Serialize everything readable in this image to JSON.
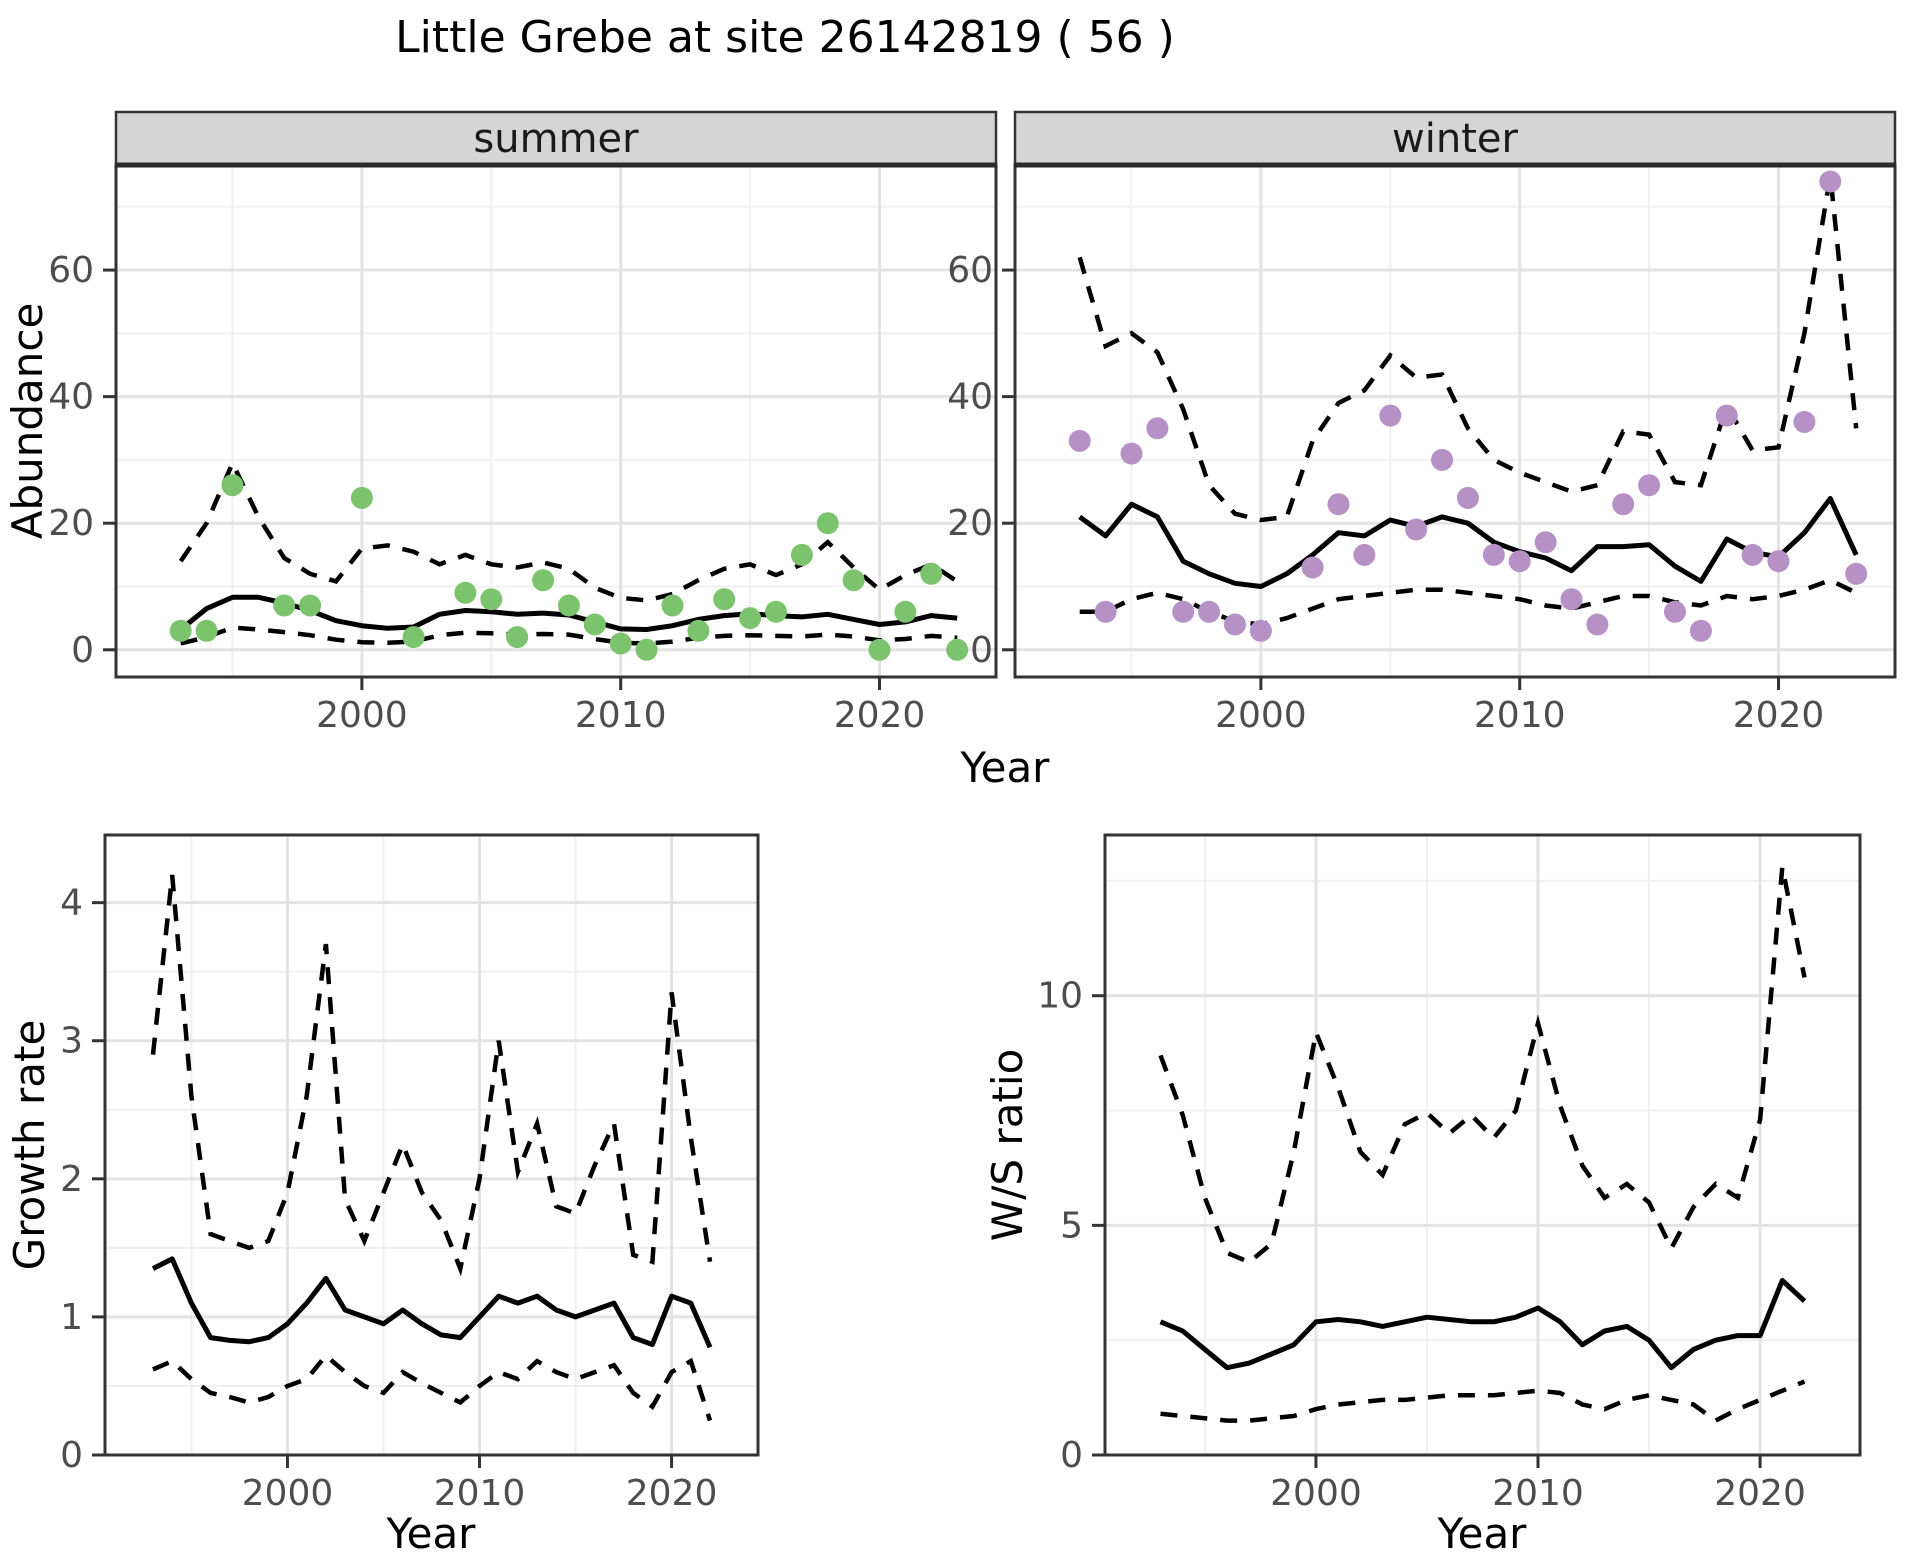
{
  "title": "Little Grebe at site 26142819 ( 56 )",
  "axis": {
    "year_label": "Year",
    "abundance_label": "Abundance",
    "growth_label": "Growth rate",
    "ws_label": "W/S ratio"
  },
  "colors": {
    "summer_point": "#7BC36D",
    "winter_point": "#B691C6",
    "line": "#000000",
    "strip_bg": "#D5D5D5",
    "strip_border": "#2A2A2A",
    "panel_border": "#333333",
    "grid_major": "#E3E3E3",
    "grid_minor": "#F0F0F0",
    "tick_text": "#4D4D4D"
  },
  "chart_data": [
    {
      "key": "summer",
      "type": "line+scatter",
      "facet_label": "summer",
      "xlabel": "Year",
      "ylabel": "Abundance",
      "x_range": [
        1990.5,
        2024.5
      ],
      "ylim": [
        -4.3,
        76.6
      ],
      "x_major": [
        2000,
        2010,
        2020
      ],
      "x_minor": [
        1995,
        2005,
        2015
      ],
      "y_major": [
        0,
        20,
        40,
        60
      ],
      "y_minor": [
        10,
        30,
        50,
        70
      ],
      "years": [
        1993,
        1994,
        1995,
        1996,
        1997,
        1998,
        1999,
        2000,
        2001,
        2002,
        2003,
        2004,
        2005,
        2006,
        2007,
        2008,
        2009,
        2010,
        2011,
        2012,
        2013,
        2014,
        2015,
        2016,
        2017,
        2018,
        2019,
        2020,
        2021,
        2022,
        2023
      ],
      "fit": [
        3.2,
        6.5,
        8.3,
        8.3,
        7.4,
        6.2,
        4.6,
        3.8,
        3.4,
        3.6,
        5.6,
        6.2,
        6.0,
        5.6,
        5.8,
        5.5,
        4.4,
        3.3,
        3.2,
        3.8,
        4.8,
        5.4,
        5.7,
        5.4,
        5.2,
        5.6,
        4.8,
        4.0,
        4.4,
        5.4,
        5.0
      ],
      "upper": [
        14,
        20,
        29.5,
        21,
        14.5,
        12,
        10.8,
        16,
        16.5,
        15.5,
        13.5,
        15,
        13.5,
        13,
        13.8,
        12.8,
        9.8,
        8.2,
        7.8,
        8.8,
        11,
        12.8,
        13.5,
        11.8,
        13.5,
        17,
        13,
        9.5,
        11.8,
        13.5,
        10.8
      ],
      "lower": [
        1,
        2,
        3.5,
        3.2,
        2.8,
        2.3,
        1.6,
        1.2,
        1.1,
        1.3,
        2.3,
        2.7,
        2.6,
        2.4,
        2.5,
        2.4,
        1.7,
        1.1,
        1.0,
        1.3,
        1.9,
        2.2,
        2.3,
        2.2,
        2.1,
        2.4,
        2.1,
        1.5,
        1.7,
        2.2,
        1.9
      ],
      "points": [
        [
          1993,
          3
        ],
        [
          1994,
          3
        ],
        [
          1995,
          26
        ],
        [
          1997,
          7
        ],
        [
          1998,
          7
        ],
        [
          2000,
          24
        ],
        [
          2002,
          2
        ],
        [
          2004,
          9
        ],
        [
          2005,
          8
        ],
        [
          2006,
          2
        ],
        [
          2007,
          11
        ],
        [
          2008,
          7
        ],
        [
          2009,
          4
        ],
        [
          2010,
          1
        ],
        [
          2011,
          0
        ],
        [
          2012,
          7
        ],
        [
          2013,
          3
        ],
        [
          2014,
          8
        ],
        [
          2015,
          5
        ],
        [
          2016,
          6
        ],
        [
          2017,
          15
        ],
        [
          2018,
          20
        ],
        [
          2019,
          11
        ],
        [
          2020,
          0
        ],
        [
          2021,
          6
        ],
        [
          2022,
          12
        ],
        [
          2023,
          0
        ]
      ],
      "point_color_key": "summer_point"
    },
    {
      "key": "winter",
      "type": "line+scatter",
      "facet_label": "winter",
      "xlabel": "Year",
      "ylabel": "Abundance",
      "x_range": [
        1990.5,
        2024.5
      ],
      "ylim": [
        -4.3,
        76.6
      ],
      "x_major": [
        2000,
        2010,
        2020
      ],
      "x_minor": [
        1995,
        2005,
        2015
      ],
      "y_major": [
        0,
        20,
        40,
        60
      ],
      "y_minor": [
        10,
        30,
        50,
        70
      ],
      "years": [
        1993,
        1994,
        1995,
        1996,
        1997,
        1998,
        1999,
        2000,
        2001,
        2002,
        2003,
        2004,
        2005,
        2006,
        2007,
        2008,
        2009,
        2010,
        2011,
        2012,
        2013,
        2014,
        2015,
        2016,
        2017,
        2018,
        2019,
        2020,
        2021,
        2022,
        2023
      ],
      "fit": [
        21,
        18,
        23,
        21,
        14,
        12,
        10.5,
        10,
        12,
        15,
        18.5,
        18,
        20.5,
        19.5,
        21,
        20,
        17,
        15.5,
        14.5,
        12.5,
        16.3,
        16.3,
        16.6,
        13.2,
        10.8,
        17.5,
        15.4,
        14.7,
        18.5,
        23.9,
        15
      ],
      "upper": [
        62,
        48,
        50,
        47,
        38,
        26,
        21.5,
        20.5,
        21,
        33,
        39,
        41,
        46.5,
        43,
        43.5,
        35,
        30,
        28,
        26.5,
        25,
        26,
        34.5,
        34,
        26.5,
        26,
        38.5,
        31.5,
        32,
        50,
        75,
        35
      ],
      "lower": [
        6,
        6,
        8,
        9,
        8,
        6,
        4.5,
        4,
        5,
        6.5,
        8,
        8.5,
        9,
        9.5,
        9.5,
        9,
        8.5,
        8,
        7,
        6.5,
        7.5,
        8.5,
        8.5,
        7.5,
        7,
        8.5,
        8,
        8.5,
        9.5,
        11,
        9
      ],
      "points": [
        [
          1993,
          33
        ],
        [
          1994,
          6
        ],
        [
          1995,
          31
        ],
        [
          1996,
          35
        ],
        [
          1997,
          6
        ],
        [
          1998,
          6
        ],
        [
          1999,
          4
        ],
        [
          2000,
          3
        ],
        [
          2002,
          13
        ],
        [
          2003,
          23
        ],
        [
          2004,
          15
        ],
        [
          2005,
          37
        ],
        [
          2006,
          19
        ],
        [
          2007,
          30
        ],
        [
          2008,
          24
        ],
        [
          2009,
          15
        ],
        [
          2010,
          14
        ],
        [
          2011,
          17
        ],
        [
          2012,
          8
        ],
        [
          2013,
          4
        ],
        [
          2014,
          23
        ],
        [
          2015,
          26
        ],
        [
          2016,
          6
        ],
        [
          2017,
          3
        ],
        [
          2018,
          37
        ],
        [
          2019,
          15
        ],
        [
          2020,
          14
        ],
        [
          2021,
          36
        ],
        [
          2022,
          74
        ],
        [
          2023,
          12
        ]
      ],
      "point_color_key": "winter_point"
    },
    {
      "key": "growth",
      "type": "line",
      "facet_label": null,
      "xlabel": "Year",
      "ylabel": "Growth rate",
      "x_range": [
        1990.5,
        2024.5
      ],
      "ylim": [
        0,
        4.49
      ],
      "x_major": [
        2000,
        2010,
        2020
      ],
      "x_minor": [
        1995,
        2005,
        2015
      ],
      "y_major": [
        0,
        1,
        2,
        3,
        4
      ],
      "y_minor": [
        0.5,
        1.5,
        2.5,
        3.5
      ],
      "years": [
        1993,
        1994,
        1995,
        1996,
        1997,
        1998,
        1999,
        2000,
        2001,
        2002,
        2003,
        2004,
        2005,
        2006,
        2007,
        2008,
        2009,
        2010,
        2011,
        2012,
        2013,
        2014,
        2015,
        2016,
        2017,
        2018,
        2019,
        2020,
        2021,
        2022
      ],
      "fit": [
        1.35,
        1.42,
        1.1,
        0.85,
        0.83,
        0.82,
        0.85,
        0.95,
        1.1,
        1.28,
        1.05,
        1.0,
        0.95,
        1.05,
        0.95,
        0.87,
        0.85,
        1.0,
        1.15,
        1.1,
        1.15,
        1.05,
        1.0,
        1.05,
        1.1,
        0.85,
        0.8,
        1.15,
        1.1,
        0.78
      ],
      "upper": [
        2.9,
        4.2,
        2.6,
        1.6,
        1.55,
        1.5,
        1.55,
        1.9,
        2.6,
        3.7,
        1.85,
        1.55,
        1.9,
        2.25,
        1.9,
        1.7,
        1.35,
        2.0,
        3.0,
        2.05,
        2.4,
        1.8,
        1.75,
        2.1,
        2.4,
        1.45,
        1.4,
        3.35,
        2.3,
        1.4
      ],
      "lower": [
        0.62,
        0.68,
        0.55,
        0.45,
        0.42,
        0.38,
        0.42,
        0.5,
        0.55,
        0.72,
        0.6,
        0.5,
        0.45,
        0.6,
        0.52,
        0.45,
        0.38,
        0.5,
        0.6,
        0.55,
        0.68,
        0.6,
        0.55,
        0.6,
        0.65,
        0.45,
        0.35,
        0.6,
        0.68,
        0.25
      ],
      "points": null,
      "point_color_key": null
    },
    {
      "key": "ws",
      "type": "line",
      "facet_label": null,
      "xlabel": "Year",
      "ylabel": "W/S ratio",
      "x_range": [
        1990.5,
        2024.5
      ],
      "ylim": [
        0,
        13.5
      ],
      "x_major": [
        2000,
        2010,
        2020
      ],
      "x_minor": [
        1995,
        2005,
        2015
      ],
      "y_major": [
        0,
        5,
        10
      ],
      "y_minor": [
        2.5,
        7.5,
        12.5
      ],
      "years": [
        1993,
        1994,
        1995,
        1996,
        1997,
        1998,
        1999,
        2000,
        2001,
        2002,
        2003,
        2004,
        2005,
        2006,
        2007,
        2008,
        2009,
        2010,
        2011,
        2012,
        2013,
        2014,
        2015,
        2016,
        2017,
        2018,
        2019,
        2020,
        2021,
        2022
      ],
      "fit": [
        2.9,
        2.7,
        2.3,
        1.9,
        2.0,
        2.2,
        2.4,
        2.9,
        2.95,
        2.9,
        2.8,
        2.9,
        3.0,
        2.95,
        2.9,
        2.9,
        3.0,
        3.2,
        2.9,
        2.4,
        2.7,
        2.8,
        2.5,
        1.9,
        2.3,
        2.5,
        2.6,
        2.6,
        3.8,
        3.35
      ],
      "upper": [
        8.7,
        7.4,
        5.6,
        4.4,
        4.2,
        4.6,
        6.6,
        9.2,
        8.0,
        6.6,
        6.1,
        7.2,
        7.45,
        7.0,
        7.4,
        6.9,
        7.5,
        9.4,
        7.6,
        6.3,
        5.6,
        5.9,
        5.5,
        4.5,
        5.4,
        5.9,
        5.6,
        7.3,
        12.8,
        10.4
      ],
      "lower": [
        0.9,
        0.85,
        0.8,
        0.75,
        0.75,
        0.8,
        0.85,
        1.0,
        1.1,
        1.15,
        1.2,
        1.2,
        1.25,
        1.3,
        1.3,
        1.3,
        1.35,
        1.4,
        1.35,
        1.1,
        1.0,
        1.2,
        1.3,
        1.2,
        1.1,
        0.75,
        1.0,
        1.2,
        1.4,
        1.6
      ],
      "points": null,
      "point_color_key": null
    }
  ]
}
